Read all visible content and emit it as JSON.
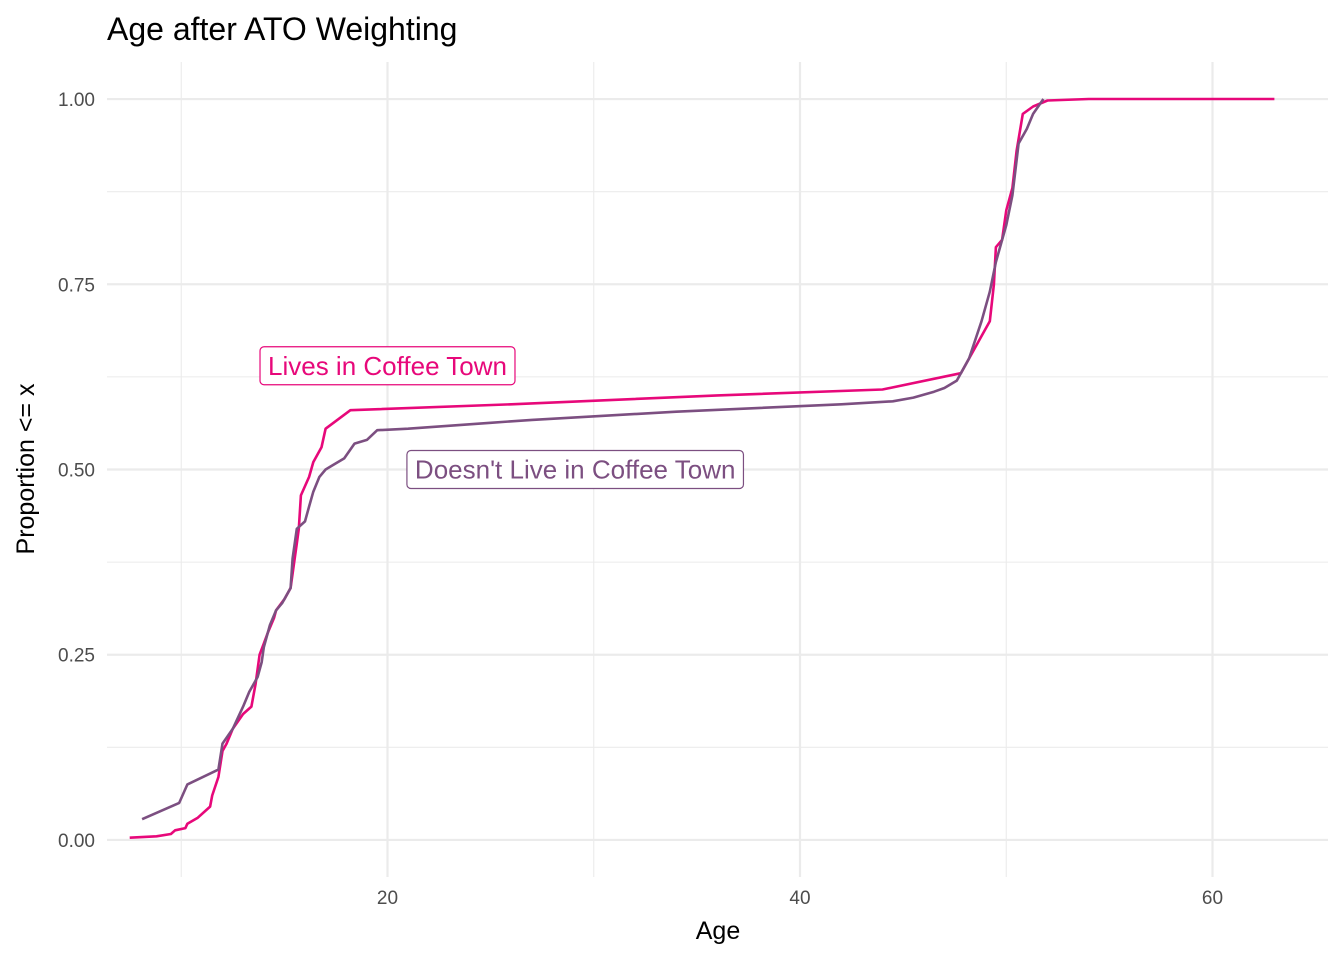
{
  "chart_data": {
    "type": "line",
    "title": "Age after ATO Weighting",
    "xlabel": "Age",
    "ylabel": "Proportion <= x",
    "xlim": [
      6.4,
      65.6
    ],
    "ylim": [
      -0.05,
      1.05
    ],
    "x_ticks": [
      20,
      40,
      60
    ],
    "x_tick_labels": [
      "20",
      "40",
      "60"
    ],
    "y_ticks": [
      0,
      0.25,
      0.5,
      0.75,
      1.0
    ],
    "y_tick_labels": [
      "0.00",
      "0.25",
      "0.50",
      "0.75",
      "1.00"
    ],
    "grid": true,
    "legend": "direct labels",
    "series": [
      {
        "name": "Lives in Coffee Town",
        "color": "#e7087a",
        "points": [
          [
            7.5,
            0.003
          ],
          [
            8.8,
            0.005
          ],
          [
            9.5,
            0.008
          ],
          [
            9.7,
            0.013
          ],
          [
            10.2,
            0.016
          ],
          [
            10.3,
            0.022
          ],
          [
            10.8,
            0.03
          ],
          [
            11.4,
            0.045
          ],
          [
            11.5,
            0.06
          ],
          [
            11.8,
            0.085
          ],
          [
            12.0,
            0.12
          ],
          [
            12.2,
            0.13
          ],
          [
            12.5,
            0.15
          ],
          [
            13.0,
            0.17
          ],
          [
            13.4,
            0.18
          ],
          [
            13.6,
            0.21
          ],
          [
            13.8,
            0.25
          ],
          [
            14.0,
            0.265
          ],
          [
            14.2,
            0.28
          ],
          [
            14.5,
            0.3
          ],
          [
            14.6,
            0.31
          ],
          [
            15.0,
            0.325
          ],
          [
            15.3,
            0.34
          ],
          [
            15.5,
            0.38
          ],
          [
            15.6,
            0.4
          ],
          [
            15.7,
            0.42
          ],
          [
            15.8,
            0.465
          ],
          [
            16.2,
            0.49
          ],
          [
            16.4,
            0.51
          ],
          [
            16.8,
            0.53
          ],
          [
            17.0,
            0.555
          ],
          [
            18.2,
            0.58
          ],
          [
            26.0,
            0.588
          ],
          [
            36.0,
            0.6
          ],
          [
            44.0,
            0.608
          ],
          [
            47.8,
            0.63
          ],
          [
            48.8,
            0.68
          ],
          [
            49.2,
            0.7
          ],
          [
            49.4,
            0.75
          ],
          [
            49.5,
            0.8
          ],
          [
            49.8,
            0.81
          ],
          [
            50.0,
            0.85
          ],
          [
            50.3,
            0.88
          ],
          [
            50.5,
            0.93
          ],
          [
            50.8,
            0.98
          ],
          [
            51.3,
            0.99
          ],
          [
            52.0,
            0.998
          ],
          [
            54.0,
            1.0
          ],
          [
            63.0,
            1.0
          ]
        ]
      },
      {
        "name": "Doesn't Live in Coffee Town",
        "color": "#7c4f81",
        "points": [
          [
            8.1,
            0.028
          ],
          [
            9.9,
            0.05
          ],
          [
            10.3,
            0.075
          ],
          [
            11.8,
            0.095
          ],
          [
            12.0,
            0.13
          ],
          [
            12.5,
            0.15
          ],
          [
            13.0,
            0.18
          ],
          [
            13.3,
            0.2
          ],
          [
            13.7,
            0.22
          ],
          [
            13.9,
            0.24
          ],
          [
            14.0,
            0.26
          ],
          [
            14.3,
            0.29
          ],
          [
            14.6,
            0.31
          ],
          [
            14.9,
            0.32
          ],
          [
            15.3,
            0.34
          ],
          [
            15.4,
            0.38
          ],
          [
            15.6,
            0.42
          ],
          [
            16.0,
            0.43
          ],
          [
            16.2,
            0.45
          ],
          [
            16.4,
            0.47
          ],
          [
            16.7,
            0.49
          ],
          [
            17.0,
            0.5
          ],
          [
            17.3,
            0.505
          ],
          [
            17.9,
            0.515
          ],
          [
            18.4,
            0.535
          ],
          [
            19.0,
            0.54
          ],
          [
            19.5,
            0.553
          ],
          [
            21.0,
            0.555
          ],
          [
            25.0,
            0.563
          ],
          [
            27.0,
            0.567
          ],
          [
            34.0,
            0.578
          ],
          [
            42.0,
            0.588
          ],
          [
            44.5,
            0.592
          ],
          [
            45.5,
            0.597
          ],
          [
            46.5,
            0.605
          ],
          [
            47.0,
            0.61
          ],
          [
            47.6,
            0.62
          ],
          [
            48.2,
            0.65
          ],
          [
            48.8,
            0.7
          ],
          [
            49.2,
            0.74
          ],
          [
            49.5,
            0.78
          ],
          [
            50.0,
            0.83
          ],
          [
            50.3,
            0.87
          ],
          [
            50.6,
            0.94
          ],
          [
            51.0,
            0.96
          ],
          [
            51.3,
            0.98
          ],
          [
            51.8,
            1.0
          ]
        ]
      }
    ],
    "annotations": [
      {
        "text": "Lives in Coffee Town",
        "x": 20.0,
        "y": 0.64,
        "color": "#e7087a"
      },
      {
        "text": "Doesn't Live in Coffee Town",
        "x": 29.1,
        "y": 0.5,
        "color": "#7c4f81"
      }
    ]
  }
}
